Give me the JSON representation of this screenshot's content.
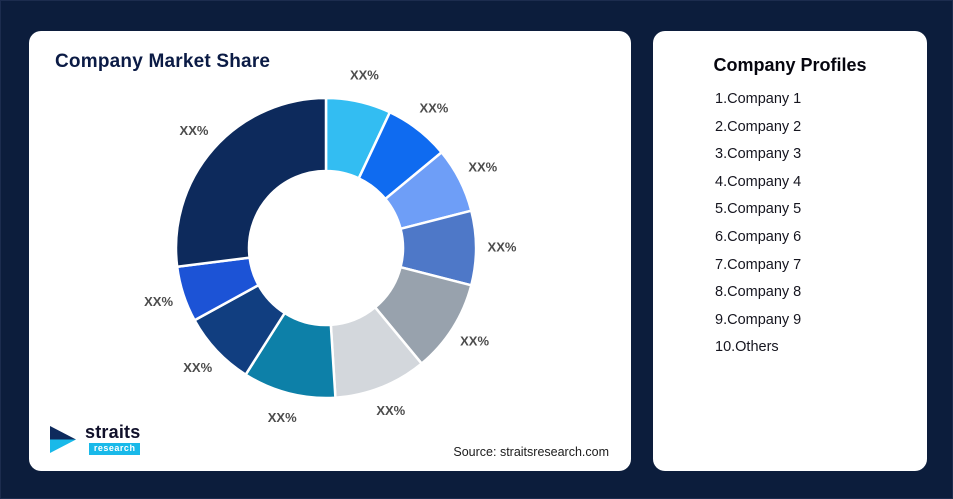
{
  "colors": {
    "background": "#0C1D3C",
    "card": "#FFFFFF",
    "title": "#0B1B45",
    "slice_label": "#4C4C4C",
    "logo_accent": "#19B9E9"
  },
  "market_share_card": {
    "title": "Company Market Share",
    "source": "Source: straitsresearch.com",
    "logo": {
      "name": "straits",
      "sub": "research"
    }
  },
  "profiles_card": {
    "title": "Company Profiles",
    "items": [
      "1.Company 1",
      "2.Company 2",
      "3.Company 3",
      "4.Company 4",
      "5.Company 5",
      "6.Company 6",
      "7.Company 7",
      "8.Company 8",
      "9.Company 9",
      "10.Others"
    ]
  },
  "chart_data": {
    "type": "pie",
    "subtype": "donut",
    "title": "Company Market Share",
    "legend_position": "none",
    "inner_radius_ratio": 0.51,
    "start_angle_deg": 0,
    "direction": "clockwise",
    "values_are_estimated_from_arc_angles": true,
    "segments": [
      {
        "name": "Company 1",
        "label": "XX%",
        "value": 7,
        "color": "#33BDF2"
      },
      {
        "name": "Company 2",
        "label": "XX%",
        "value": 7,
        "color": "#0F6BF0"
      },
      {
        "name": "Company 3",
        "label": "XX%",
        "value": 7,
        "color": "#6E9EF7"
      },
      {
        "name": "Company 4",
        "label": "XX%",
        "value": 8,
        "color": "#4E78C8"
      },
      {
        "name": "Company 5",
        "label": "XX%",
        "value": 10,
        "color": "#98A2AD"
      },
      {
        "name": "Company 6",
        "label": "XX%",
        "value": 10,
        "color": "#D3D7DC"
      },
      {
        "name": "Company 7",
        "label": "XX%",
        "value": 10,
        "color": "#0D80A8"
      },
      {
        "name": "Company 8",
        "label": "XX%",
        "value": 8,
        "color": "#113E80"
      },
      {
        "name": "Company 9",
        "label": "XX%",
        "value": 6,
        "color": "#1C53D6"
      },
      {
        "name": "Others",
        "label": "XX%",
        "value": 27,
        "color": "#0D2A5C"
      }
    ]
  }
}
